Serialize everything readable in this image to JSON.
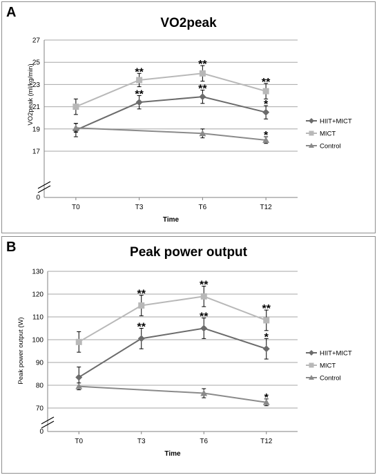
{
  "colors": {
    "hiit_mict": "#6b6b6b",
    "mict": "#b8b8b8",
    "control": "#8a8a8a",
    "grid": "#a6a6a6"
  },
  "panels": [
    {
      "letter": "A",
      "title": "VO2peak"
    },
    {
      "letter": "B",
      "title": "Peak power output"
    }
  ],
  "chart_data": [
    {
      "type": "line",
      "title": "VO2peak",
      "xlabel": "Time",
      "ylabel": "VO2peak (ml/kg/min)",
      "categories": [
        "T0",
        "T3",
        "T6",
        "T12"
      ],
      "yticks": [
        0,
        17,
        19,
        21,
        23,
        25,
        27
      ],
      "ylim": [
        17,
        27
      ],
      "axis_break": true,
      "grid": true,
      "legend_position": "right",
      "series": [
        {
          "name": "HIIT+MICT",
          "marker": "diamond",
          "values": [
            18.9,
            21.4,
            21.9,
            20.5
          ],
          "errors": [
            0.6,
            0.6,
            0.6,
            0.6
          ],
          "significance": [
            "",
            "**",
            "**",
            "*"
          ]
        },
        {
          "name": "MICT",
          "marker": "square",
          "values": [
            21.0,
            23.4,
            24.0,
            22.4
          ],
          "errors": [
            0.7,
            0.6,
            0.7,
            0.7
          ],
          "significance": [
            "",
            "**",
            "**",
            "**"
          ]
        },
        {
          "name": "Control",
          "marker": "triangle",
          "values": [
            19.1,
            null,
            18.6,
            18.0
          ],
          "errors": [
            0.4,
            null,
            0.4,
            0.3
          ],
          "significance": [
            "",
            "",
            "",
            "*"
          ]
        }
      ]
    },
    {
      "type": "line",
      "title": "Peak power output",
      "xlabel": "Time",
      "ylabel": "Peak power output (W)",
      "categories": [
        "T0",
        "T3",
        "T6",
        "T12"
      ],
      "yticks": [
        0,
        70,
        80,
        90,
        100,
        110,
        120,
        130
      ],
      "ylim": [
        70,
        130
      ],
      "axis_break": true,
      "grid": true,
      "legend_position": "right",
      "series": [
        {
          "name": "HIIT+MICT",
          "marker": "diamond",
          "values": [
            83.5,
            100.5,
            105.0,
            96.0
          ],
          "errors": [
            4.5,
            4.5,
            4.5,
            4.5
          ],
          "significance": [
            "",
            "**",
            "**",
            "*"
          ]
        },
        {
          "name": "MICT",
          "marker": "square",
          "values": [
            99.0,
            115.0,
            119.0,
            108.5
          ],
          "errors": [
            4.5,
            4.5,
            4.5,
            4.5
          ],
          "significance": [
            "",
            "**",
            "**",
            "**"
          ]
        },
        {
          "name": "Control",
          "marker": "triangle",
          "values": [
            79.5,
            null,
            76.5,
            72.5
          ],
          "errors": [
            1.5,
            null,
            2.0,
            1.5
          ],
          "significance": [
            "",
            "",
            "",
            "*"
          ]
        }
      ]
    }
  ]
}
